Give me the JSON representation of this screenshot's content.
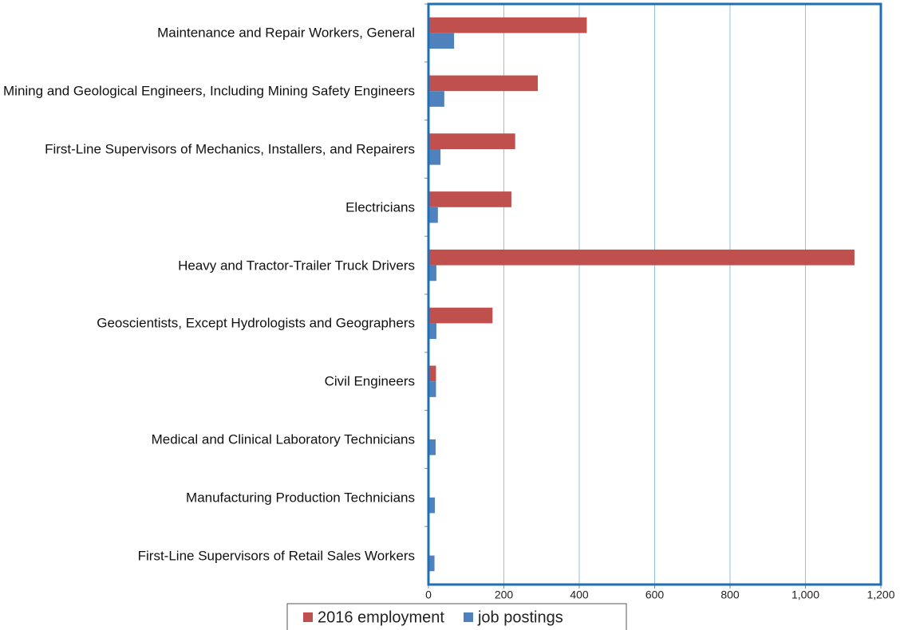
{
  "chart_data": {
    "type": "bar",
    "orientation": "horizontal",
    "categories": [
      "Maintenance and Repair Workers, General",
      "Mining and Geological Engineers, Including Mining Safety Engineers",
      "First-Line Supervisors of Mechanics, Installers, and Repairers",
      "Electricians",
      "Heavy and Tractor-Trailer Truck Drivers",
      "Geoscientists, Except Hydrologists and Geographers",
      "Civil Engineers",
      "Medical and Clinical Laboratory Technicians",
      "Manufacturing Production Technicians",
      "First-Line Supervisors of Retail Sales Workers"
    ],
    "series": [
      {
        "name": "2016 employment",
        "color": "#c0504d",
        "values": [
          420,
          290,
          230,
          220,
          1130,
          170,
          20,
          0,
          0,
          0
        ]
      },
      {
        "name": "job postings",
        "color": "#4f81bd",
        "values": [
          68,
          42,
          32,
          25,
          21,
          21,
          20,
          19,
          17,
          16
        ]
      }
    ],
    "xlim": [
      0,
      1200
    ],
    "xticks": [
      0,
      200,
      400,
      600,
      800,
      {
        "value": 1000,
        "label": "1,000"
      },
      {
        "value": 1200,
        "label": "1,200"
      }
    ],
    "grid": true,
    "legend": "bottom"
  }
}
